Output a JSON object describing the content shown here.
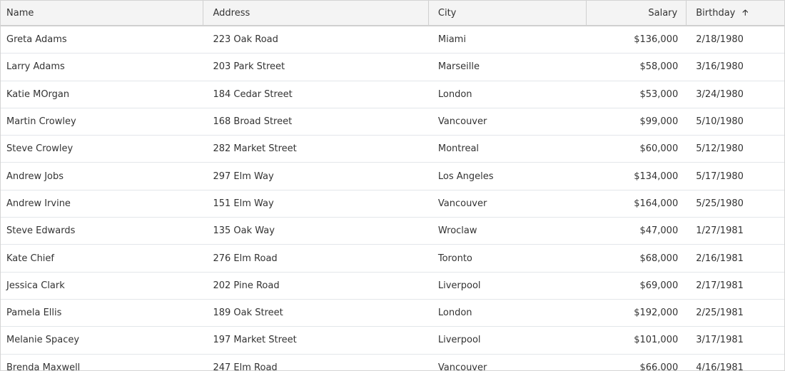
{
  "columns": [
    {
      "label": "Name"
    },
    {
      "label": "Address"
    },
    {
      "label": "City"
    },
    {
      "label": "Salary"
    },
    {
      "label": "Birthday",
      "sort": "ascending",
      "sort_icon": "arrow-up-icon"
    }
  ],
  "rows": [
    [
      "Greta Adams",
      "223 Oak Road",
      "Miami",
      "$136,000",
      "2/18/1980"
    ],
    [
      "Larry Adams",
      "203 Park Street",
      "Marseille",
      "$58,000",
      "3/16/1980"
    ],
    [
      "Katie MOrgan",
      "184 Cedar Street",
      "London",
      "$53,000",
      "3/24/1980"
    ],
    [
      "Martin Crowley",
      "168 Broad Street",
      "Vancouver",
      "$99,000",
      "5/10/1980"
    ],
    [
      "Steve Crowley",
      "282 Market Street",
      "Montreal",
      "$60,000",
      "5/12/1980"
    ],
    [
      "Andrew Jobs",
      "297 Elm Way",
      "Los Angeles",
      "$134,000",
      "5/17/1980"
    ],
    [
      "Andrew Irvine",
      "151 Elm Way",
      "Vancouver",
      "$164,000",
      "5/25/1980"
    ],
    [
      "Steve Edwards",
      "135 Oak Way",
      "Wroclaw",
      "$47,000",
      "1/27/1981"
    ],
    [
      "Kate Chief",
      "276 Elm Road",
      "Toronto",
      "$68,000",
      "2/16/1981"
    ],
    [
      "Jessica Clark",
      "202 Pine Road",
      "Liverpool",
      "$69,000",
      "2/17/1981"
    ],
    [
      "Pamela Ellis",
      "189 Oak Street",
      "London",
      "$192,000",
      "2/25/1981"
    ],
    [
      "Melanie Spacey",
      "197 Market Street",
      "Liverpool",
      "$101,000",
      "3/17/1981"
    ],
    [
      "Brenda Maxwell",
      "247 Elm Road",
      "Vancouver",
      "$66,000",
      "4/16/1981"
    ]
  ]
}
